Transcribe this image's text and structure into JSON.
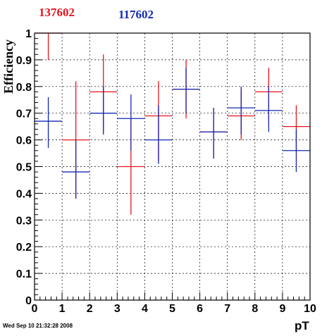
{
  "chart_data": {
    "type": "scatter",
    "xlabel": "pT",
    "ylabel": "Efficiency",
    "xlim": [
      0,
      10
    ],
    "ylim": [
      0,
      1
    ],
    "xticks": [
      "0",
      "1",
      "2",
      "3",
      "4",
      "5",
      "6",
      "7",
      "8",
      "9",
      "10"
    ],
    "yticks": [
      "0",
      "0.1",
      "0.2",
      "0.3",
      "0.4",
      "0.5",
      "0.6",
      "0.7",
      "0.8",
      "0.9",
      "1"
    ],
    "grid": true,
    "legend_position": "top-left",
    "series": [
      {
        "name": "137602",
        "color": "#e8141e",
        "x": [
          0.5,
          1.5,
          2.5,
          3.5,
          4.5,
          5.5,
          6.5,
          7.5,
          8.5,
          9.5
        ],
        "xerr": 0.5,
        "y": [
          1.0,
          0.6,
          0.78,
          0.5,
          0.69,
          0.79,
          0.63,
          0.69,
          0.78,
          0.65
        ],
        "y_low": [
          0.9,
          0.38,
          0.63,
          0.32,
          0.52,
          0.68,
          0.53,
          0.6,
          0.67,
          0.55
        ],
        "y_high": [
          1.0,
          0.82,
          0.92,
          0.68,
          0.82,
          0.9,
          0.72,
          0.79,
          0.87,
          0.73
        ]
      },
      {
        "name": "117602",
        "color": "#1428b4",
        "x": [
          0.5,
          1.5,
          2.5,
          3.5,
          4.5,
          5.5,
          6.5,
          7.5,
          8.5,
          9.5
        ],
        "xerr": 0.5,
        "y": [
          0.67,
          0.48,
          0.7,
          0.68,
          0.6,
          0.79,
          0.63,
          0.72,
          0.71,
          0.56
        ],
        "y_low": [
          0.57,
          0.38,
          0.62,
          0.56,
          0.51,
          0.7,
          0.53,
          0.62,
          0.63,
          0.48
        ],
        "y_high": [
          0.76,
          0.6,
          0.8,
          0.77,
          0.73,
          0.87,
          0.72,
          0.8,
          0.8,
          0.64
        ]
      }
    ]
  },
  "footer": {
    "timestamp": "Wed Sep 10 21:32:28 2008"
  },
  "colors": {
    "axis": "#000000",
    "grid": "#000000"
  }
}
